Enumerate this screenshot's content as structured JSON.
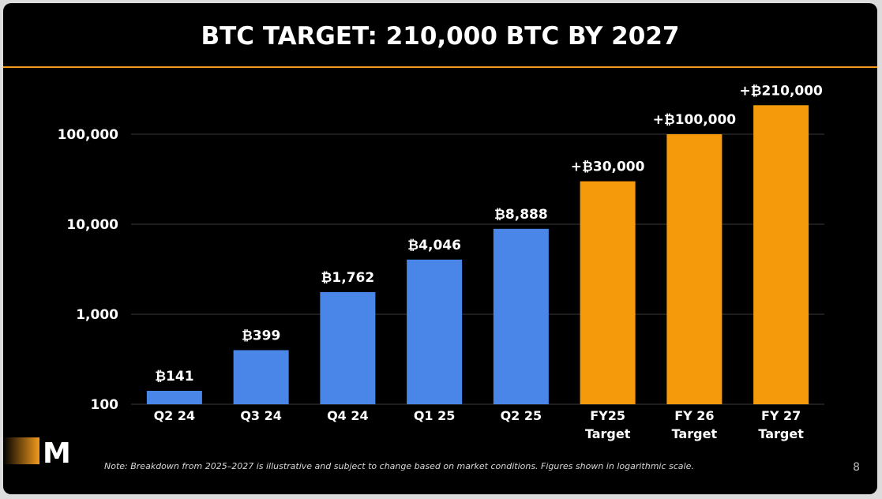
{
  "slide": {
    "title": "BTC TARGET: 210,000 BTC BY 2027",
    "note": "Note: Breakdown from 2025–2027 is illustrative and subject to change based on market conditions. Figures shown in logarithmic scale.",
    "page_number": "8",
    "logo_letter": "M"
  },
  "colors": {
    "actual": "#4a86e8",
    "target": "#f59a0b",
    "accent_rule": "#f39a1e",
    "background": "#000000"
  },
  "chart_data": {
    "type": "bar",
    "title": "BTC TARGET: 210,000 BTC BY 2027",
    "y_scale": "log",
    "ylim": [
      100,
      210000
    ],
    "y_ticks": [
      100,
      1000,
      10000,
      100000
    ],
    "y_tick_labels": [
      "100",
      "1,000",
      "10,000",
      "100,000"
    ],
    "grid": true,
    "categories": [
      [
        "Q2 24"
      ],
      [
        "Q3 24"
      ],
      [
        "Q4 24"
      ],
      [
        "Q1 25"
      ],
      [
        "Q2 25"
      ],
      [
        "FY25",
        "Target"
      ],
      [
        "FY 26",
        "Target"
      ],
      [
        "FY 27",
        "Target"
      ]
    ],
    "values": [
      141,
      399,
      1762,
      4046,
      8888,
      30000,
      100000,
      210000
    ],
    "value_labels": [
      "₿141",
      "₿399",
      "₿1,762",
      "₿4,046",
      "₿8,888",
      "+₿30,000",
      "+₿100,000",
      "+₿210,000"
    ],
    "bar_kind": [
      "actual",
      "actual",
      "actual",
      "actual",
      "actual",
      "target",
      "target",
      "target"
    ]
  }
}
